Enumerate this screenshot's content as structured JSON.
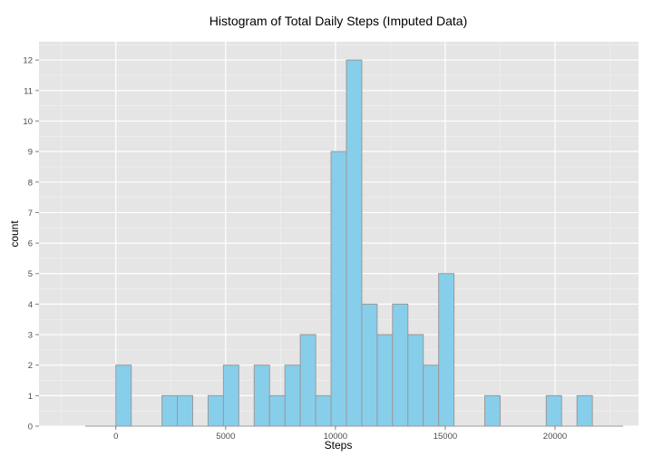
{
  "chart_data": {
    "type": "bar",
    "title": "Histogram of Total Daily Steps (Imputed Data)",
    "xlabel": "Steps",
    "ylabel": "count",
    "xlim": [
      -3500,
      23800
    ],
    "ylim": [
      0,
      12.6
    ],
    "x_ticks": [
      0,
      5000,
      10000,
      15000,
      20000
    ],
    "y_ticks": [
      0,
      1,
      2,
      3,
      4,
      5,
      6,
      7,
      8,
      9,
      10,
      11,
      12
    ],
    "bin_width": 700,
    "bins": [
      {
        "start": 0,
        "count": 2
      },
      {
        "start": 700,
        "count": 0
      },
      {
        "start": 1400,
        "count": 0
      },
      {
        "start": 2100,
        "count": 1
      },
      {
        "start": 2800,
        "count": 1
      },
      {
        "start": 3500,
        "count": 0
      },
      {
        "start": 4200,
        "count": 1
      },
      {
        "start": 4900,
        "count": 2
      },
      {
        "start": 5600,
        "count": 0
      },
      {
        "start": 6300,
        "count": 2
      },
      {
        "start": 7000,
        "count": 1
      },
      {
        "start": 7700,
        "count": 2
      },
      {
        "start": 8400,
        "count": 3
      },
      {
        "start": 9100,
        "count": 1
      },
      {
        "start": 9800,
        "count": 9
      },
      {
        "start": 10500,
        "count": 12
      },
      {
        "start": 11200,
        "count": 4
      },
      {
        "start": 11900,
        "count": 3
      },
      {
        "start": 12600,
        "count": 4
      },
      {
        "start": 13300,
        "count": 3
      },
      {
        "start": 14000,
        "count": 2
      },
      {
        "start": 14700,
        "count": 5
      },
      {
        "start": 15400,
        "count": 0
      },
      {
        "start": 16100,
        "count": 0
      },
      {
        "start": 16800,
        "count": 1
      },
      {
        "start": 17500,
        "count": 0
      },
      {
        "start": 18200,
        "count": 0
      },
      {
        "start": 18900,
        "count": 0
      },
      {
        "start": 19600,
        "count": 1
      },
      {
        "start": 20300,
        "count": 0
      },
      {
        "start": 21000,
        "count": 1
      },
      {
        "start": 21700,
        "count": 0
      }
    ],
    "grid": true,
    "colors": {
      "panel_background": "#e5e5e5",
      "grid_major": "#ffffff",
      "grid_minor": "#f2f2f2",
      "bar_fill": "#87ceeb",
      "bar_outline": "#999999"
    }
  }
}
